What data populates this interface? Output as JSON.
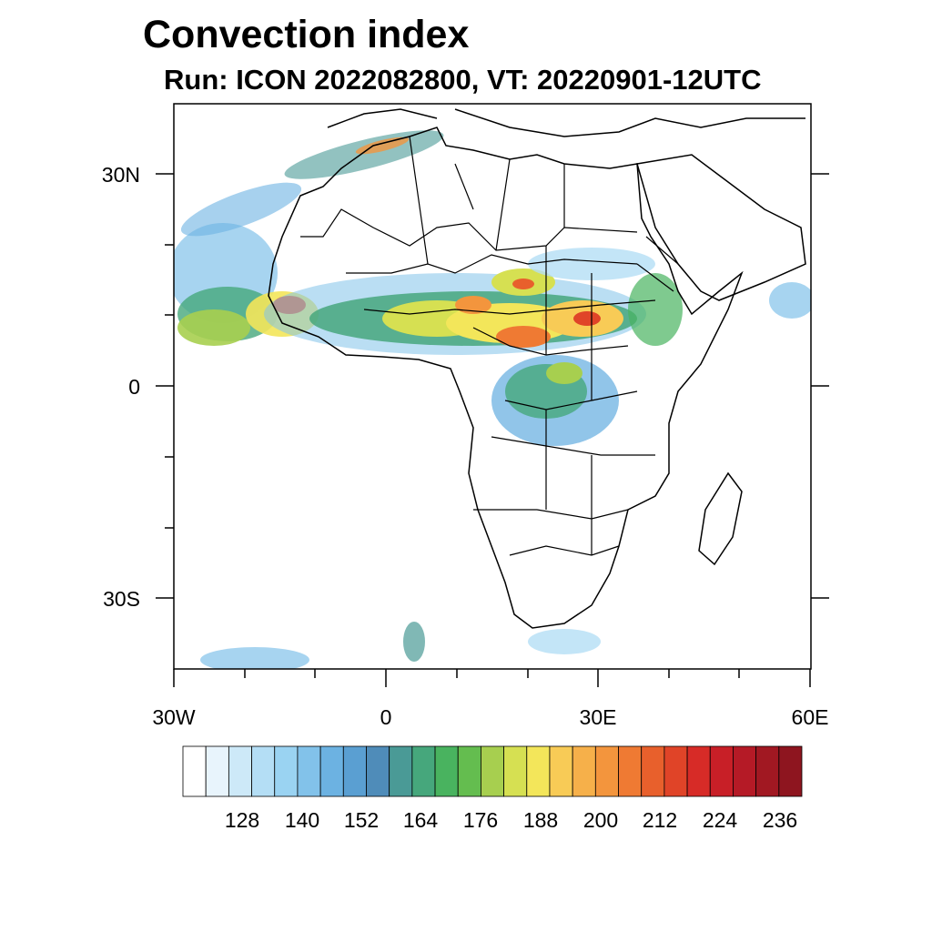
{
  "title": "Convection index",
  "subtitle": "Run: ICON 2022082800,  VT: 20220901-12UTC",
  "lat_labels": [
    "30N",
    "0",
    "30S"
  ],
  "lon_labels": [
    "30W",
    "0",
    "30E",
    "60E"
  ],
  "colorbar": {
    "colors": [
      "#ffffff",
      "#e8f4fc",
      "#cde9f8",
      "#b4def5",
      "#9ad3f2",
      "#82c2ea",
      "#6cb2e2",
      "#5a9fd2",
      "#4f8cb9",
      "#4a9a96",
      "#46a77c",
      "#49b35f",
      "#64bd4f",
      "#a7cf4f",
      "#d6e052",
      "#f3e65a",
      "#f8cb56",
      "#f6b04a",
      "#f3953d",
      "#ef7a33",
      "#e8602c",
      "#e04428",
      "#d72b27",
      "#c81f27",
      "#b51a26",
      "#a11822",
      "#8e151f"
    ],
    "labels": [
      "128",
      "140",
      "152",
      "164",
      "176",
      "188",
      "200",
      "212",
      "224",
      "236"
    ]
  }
}
